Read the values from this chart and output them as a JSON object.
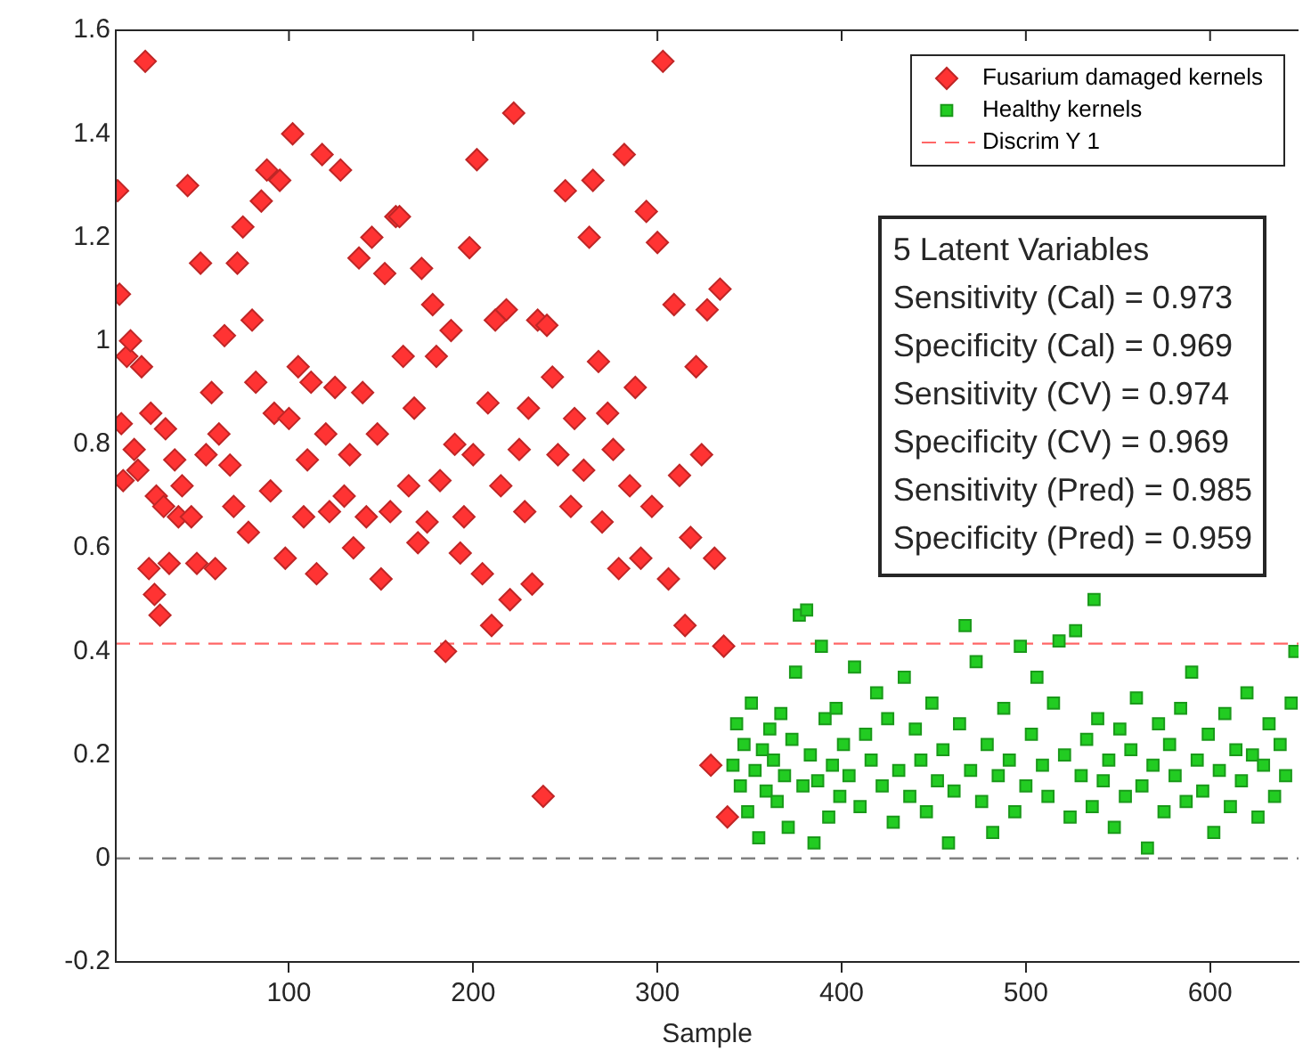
{
  "chart_data": {
    "type": "scatter",
    "xlabel": "Sample",
    "xlim": [
      6,
      648
    ],
    "xticks": [
      100,
      200,
      300,
      400,
      500,
      600
    ],
    "ylim": [
      -0.2,
      1.6
    ],
    "yticks": [
      -0.2,
      0,
      0.2,
      0.4,
      0.6,
      0.8,
      1,
      1.2,
      1.4,
      1.6
    ],
    "grid": false,
    "legend": "top right",
    "series": [
      {
        "name": "Fusarium damaged kernels",
        "color": "#ff3333",
        "marker": "diamond",
        "x": [
          7,
          8,
          9,
          10,
          12,
          14,
          16,
          18,
          20,
          22,
          24,
          25,
          27,
          28,
          30,
          32,
          33,
          35,
          38,
          40,
          42,
          45,
          47,
          50,
          52,
          55,
          58,
          60,
          62,
          65,
          68,
          70,
          72,
          75,
          78,
          80,
          82,
          85,
          88,
          90,
          92,
          95,
          98,
          100,
          102,
          105,
          108,
          110,
          112,
          115,
          118,
          120,
          122,
          125,
          128,
          130,
          133,
          135,
          138,
          140,
          142,
          145,
          148,
          150,
          152,
          155,
          158,
          160,
          162,
          165,
          168,
          170,
          172,
          175,
          178,
          180,
          182,
          185,
          188,
          190,
          193,
          195,
          198,
          200,
          202,
          205,
          208,
          210,
          212,
          215,
          218,
          220,
          222,
          225,
          228,
          230,
          232,
          235,
          238,
          240,
          243,
          246,
          250,
          253,
          255,
          260,
          263,
          265,
          268,
          270,
          273,
          276,
          279,
          282,
          285,
          288,
          291,
          294,
          297,
          300,
          303,
          306,
          309,
          312,
          315,
          318,
          321,
          324,
          327,
          329,
          331,
          334,
          336,
          338
        ],
        "values": [
          1.29,
          1.09,
          0.84,
          0.73,
          0.97,
          1.0,
          0.79,
          0.75,
          0.95,
          1.54,
          0.56,
          0.86,
          0.51,
          0.7,
          0.47,
          0.68,
          0.83,
          0.57,
          0.77,
          0.66,
          0.72,
          1.3,
          0.66,
          0.57,
          1.15,
          0.78,
          0.9,
          0.56,
          0.82,
          1.01,
          0.76,
          0.68,
          1.15,
          1.22,
          0.63,
          1.04,
          0.92,
          1.27,
          1.33,
          0.71,
          0.86,
          1.31,
          0.58,
          0.85,
          1.4,
          0.95,
          0.66,
          0.77,
          0.92,
          0.55,
          1.36,
          0.82,
          0.67,
          0.91,
          1.33,
          0.7,
          0.78,
          0.6,
          1.16,
          0.9,
          0.66,
          1.2,
          0.82,
          0.54,
          1.13,
          0.67,
          1.24,
          1.24,
          0.97,
          0.72,
          0.87,
          0.61,
          1.14,
          0.65,
          1.07,
          0.97,
          0.73,
          0.4,
          1.02,
          0.8,
          0.59,
          0.66,
          1.18,
          0.78,
          1.35,
          0.55,
          0.88,
          0.45,
          1.04,
          0.72,
          1.06,
          0.5,
          1.44,
          0.79,
          0.67,
          0.87,
          0.53,
          1.04,
          0.12,
          1.03,
          0.93,
          0.78,
          1.29,
          0.68,
          0.85,
          0.75,
          1.2,
          1.31,
          0.96,
          0.65,
          0.86,
          0.79,
          0.56,
          1.36,
          0.72,
          0.91,
          0.58,
          1.25,
          0.68,
          1.19,
          1.54,
          0.54,
          1.07,
          0.74,
          0.45,
          0.62,
          0.95,
          0.78,
          1.06,
          0.18,
          0.58,
          1.1,
          0.41,
          0.08
        ]
      },
      {
        "name": "Healthy kernels",
        "color": "#22cc22",
        "marker": "square",
        "x": [
          341,
          343,
          345,
          347,
          349,
          351,
          353,
          355,
          357,
          359,
          361,
          363,
          365,
          367,
          369,
          371,
          373,
          375,
          377,
          379,
          381,
          383,
          385,
          387,
          389,
          391,
          393,
          395,
          397,
          399,
          401,
          404,
          407,
          410,
          413,
          416,
          419,
          422,
          425,
          428,
          431,
          434,
          437,
          440,
          443,
          446,
          449,
          452,
          455,
          458,
          461,
          464,
          467,
          470,
          473,
          476,
          479,
          482,
          485,
          488,
          491,
          494,
          497,
          500,
          503,
          506,
          509,
          512,
          515,
          518,
          521,
          524,
          527,
          530,
          533,
          536,
          537,
          539,
          542,
          545,
          548,
          551,
          554,
          557,
          560,
          563,
          566,
          569,
          572,
          575,
          578,
          581,
          584,
          587,
          590,
          593,
          596,
          599,
          602,
          605,
          608,
          611,
          614,
          617,
          620,
          623,
          626,
          629,
          632,
          635,
          638,
          641,
          644,
          646
        ],
        "values": [
          0.18,
          0.26,
          0.14,
          0.22,
          0.09,
          0.3,
          0.17,
          0.04,
          0.21,
          0.13,
          0.25,
          0.19,
          0.11,
          0.28,
          0.16,
          0.06,
          0.23,
          0.36,
          0.47,
          0.14,
          0.48,
          0.2,
          0.03,
          0.15,
          0.41,
          0.27,
          0.08,
          0.18,
          0.29,
          0.12,
          0.22,
          0.16,
          0.37,
          0.1,
          0.24,
          0.19,
          0.32,
          0.14,
          0.27,
          0.07,
          0.17,
          0.35,
          0.12,
          0.25,
          0.19,
          0.09,
          0.3,
          0.15,
          0.21,
          0.03,
          0.13,
          0.26,
          0.45,
          0.17,
          0.38,
          0.11,
          0.22,
          0.05,
          0.16,
          0.29,
          0.19,
          0.09,
          0.41,
          0.14,
          0.24,
          0.35,
          0.18,
          0.12,
          0.3,
          0.42,
          0.2,
          0.08,
          0.44,
          0.16,
          0.23,
          0.1,
          0.5,
          0.27,
          0.15,
          0.19,
          0.06,
          0.25,
          0.12,
          0.21,
          0.31,
          0.14,
          0.02,
          0.18,
          0.26,
          0.09,
          0.22,
          0.16,
          0.29,
          0.11,
          0.36,
          0.19,
          0.13,
          0.24,
          0.05,
          0.17,
          0.28,
          0.1,
          0.21,
          0.15,
          0.32,
          0.2,
          0.08,
          0.18,
          0.26,
          0.12,
          0.22,
          0.16,
          0.3,
          0.4
        ]
      }
    ],
    "ref_lines": [
      {
        "axis": "y",
        "value": 0.415,
        "label": "Discrim Y 1",
        "color": "#ff6666",
        "line_style": "dashed"
      },
      {
        "axis": "y",
        "value": 0,
        "color": "#808080",
        "line_style": "dashed"
      }
    ],
    "annotations": [
      "5 Latent Variables",
      "Sensitivity (Cal) = 0.973",
      "Specificity (Cal) = 0.969",
      "Sensitivity (CV) = 0.974",
      "Specificity (CV) = 0.969",
      "Sensitivity (Pred) = 0.985",
      "Specificity (Pred) = 0.959"
    ]
  }
}
